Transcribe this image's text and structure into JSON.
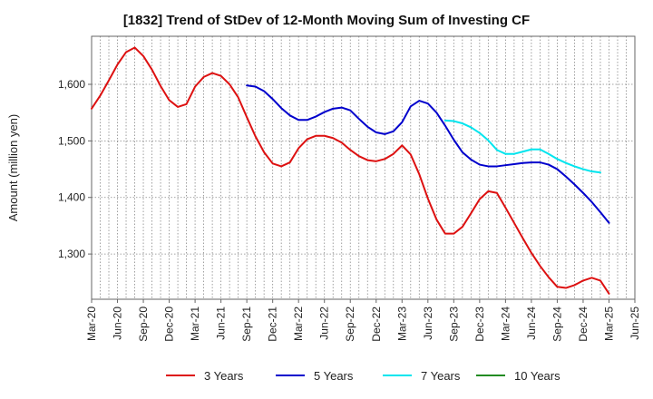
{
  "chart_data": {
    "type": "line",
    "title": "[1832]  Trend of StDev of 12-Month Moving Sum of Investing CF",
    "xlabel": "",
    "ylabel": "Amount (million yen)",
    "ylim": [
      1220,
      1685
    ],
    "yticks": [
      1300,
      1400,
      1500,
      1600
    ],
    "ytick_labels": [
      "1,300",
      "1,400",
      "1,500",
      "1,600"
    ],
    "xtick_labels": [
      "Mar-20",
      "Jun-20",
      "Sep-20",
      "Dec-20",
      "Mar-21",
      "Jun-21",
      "Sep-21",
      "Dec-21",
      "Mar-22",
      "Jun-22",
      "Sep-22",
      "Dec-22",
      "Mar-23",
      "Jun-23",
      "Sep-23",
      "Dec-23",
      "Mar-24",
      "Jun-24",
      "Sep-24",
      "Dec-24",
      "Mar-25",
      "Jun-25"
    ],
    "grid": true,
    "legend_position": "bottom",
    "series": [
      {
        "name": "3 Years",
        "color": "#dd1111",
        "start_index": 0,
        "values": [
          1557,
          1580,
          1607,
          1635,
          1657,
          1665,
          1650,
          1626,
          1597,
          1572,
          1560,
          1565,
          1596,
          1613,
          1620,
          1615,
          1600,
          1577,
          1542,
          1508,
          1480,
          1460,
          1455,
          1462,
          1487,
          1503,
          1509,
          1509,
          1505,
          1497,
          1484,
          1473,
          1466,
          1464,
          1468,
          1477,
          1492,
          1476,
          1441,
          1398,
          1361,
          1336,
          1336,
          1348,
          1372,
          1397,
          1411,
          1408,
          1382,
          1355,
          1328,
          1302,
          1279,
          1259,
          1242,
          1240,
          1245,
          1253,
          1258,
          1253,
          1230
        ]
      },
      {
        "name": "5 Years",
        "color": "#0000cc",
        "start_index": 18,
        "values": [
          1598,
          1596,
          1588,
          1574,
          1558,
          1545,
          1537,
          1537,
          1543,
          1551,
          1557,
          1559,
          1554,
          1539,
          1525,
          1515,
          1512,
          1517,
          1533,
          1561,
          1571,
          1566,
          1550,
          1527,
          1502,
          1480,
          1467,
          1458,
          1455,
          1455,
          1457,
          1459,
          1461,
          1462,
          1462,
          1458,
          1450,
          1437,
          1423,
          1408,
          1392,
          1374,
          1355
        ]
      },
      {
        "name": "7 Years",
        "color": "#00e5ee",
        "start_index": 41,
        "values": [
          1536,
          1535,
          1531,
          1524,
          1514,
          1501,
          1484,
          1477,
          1477,
          1481,
          1485,
          1485,
          1477,
          1468,
          1461,
          1455,
          1450,
          1446,
          1444
        ]
      },
      {
        "name": "10 Years",
        "color": "#228b22",
        "start_index": 60,
        "values": []
      }
    ]
  }
}
